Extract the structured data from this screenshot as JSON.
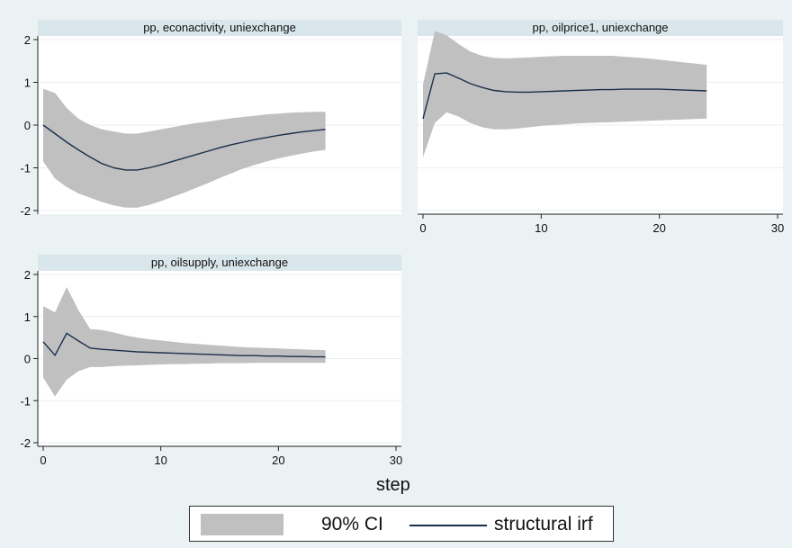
{
  "chart_data": {
    "type": "area",
    "xlabel": "step",
    "legend": {
      "items": [
        "90% CI",
        "structural irf"
      ],
      "position": "bottom"
    },
    "colors": {
      "ci_fill": "#c0c0c0",
      "irf_line": "#1a2f4a",
      "title_bar": "#d9e6eb",
      "background": "#eaf2f3",
      "plot_bg": "#ffffff",
      "grid": "#e9eef0"
    },
    "grid": true,
    "panels": [
      {
        "title": "pp, econactivity, uniexchange",
        "show_x_axis": false,
        "xlim": [
          0,
          30
        ],
        "ylim": [
          -2,
          2
        ],
        "yticks": [
          -2,
          -1,
          0,
          1,
          2
        ],
        "x": [
          0,
          1,
          2,
          3,
          4,
          5,
          6,
          7,
          8,
          9,
          10,
          11,
          12,
          13,
          14,
          15,
          16,
          17,
          18,
          19,
          20,
          21,
          22,
          23,
          24
        ],
        "irf": [
          0.0,
          -0.2,
          -0.4,
          -0.58,
          -0.75,
          -0.9,
          -1.0,
          -1.05,
          -1.05,
          -1.0,
          -0.93,
          -0.85,
          -0.77,
          -0.69,
          -0.61,
          -0.53,
          -0.46,
          -0.4,
          -0.34,
          -0.29,
          -0.24,
          -0.2,
          -0.16,
          -0.13,
          -0.1
        ],
        "upper": [
          0.85,
          0.75,
          0.4,
          0.15,
          0.0,
          -0.1,
          -0.15,
          -0.2,
          -0.2,
          -0.15,
          -0.1,
          -0.05,
          0.0,
          0.05,
          0.08,
          0.12,
          0.16,
          0.19,
          0.22,
          0.25,
          0.27,
          0.29,
          0.3,
          0.31,
          0.31
        ],
        "lower": [
          -0.85,
          -1.25,
          -1.45,
          -1.6,
          -1.7,
          -1.8,
          -1.88,
          -1.93,
          -1.93,
          -1.87,
          -1.78,
          -1.68,
          -1.58,
          -1.47,
          -1.36,
          -1.24,
          -1.13,
          -1.02,
          -0.93,
          -0.85,
          -0.78,
          -0.72,
          -0.67,
          -0.62,
          -0.58
        ]
      },
      {
        "title": "pp, oilprice1, uniexchange",
        "show_x_axis": true,
        "show_y_axis": false,
        "xlim": [
          0,
          30
        ],
        "xticks": [
          0,
          10,
          20,
          30
        ],
        "ylim": [
          -2,
          2
        ],
        "x": [
          0,
          1,
          2,
          3,
          4,
          5,
          6,
          7,
          8,
          9,
          10,
          11,
          12,
          13,
          14,
          15,
          16,
          17,
          18,
          19,
          20,
          21,
          22,
          23,
          24
        ],
        "irf": [
          0.15,
          1.2,
          1.22,
          1.1,
          0.97,
          0.88,
          0.81,
          0.78,
          0.77,
          0.77,
          0.78,
          0.79,
          0.8,
          0.81,
          0.82,
          0.83,
          0.83,
          0.84,
          0.84,
          0.84,
          0.84,
          0.83,
          0.82,
          0.81,
          0.8
        ],
        "upper": [
          0.95,
          2.2,
          2.1,
          1.9,
          1.72,
          1.62,
          1.57,
          1.56,
          1.57,
          1.58,
          1.6,
          1.61,
          1.62,
          1.62,
          1.62,
          1.62,
          1.62,
          1.6,
          1.58,
          1.56,
          1.53,
          1.5,
          1.47,
          1.44,
          1.41
        ],
        "lower": [
          -0.75,
          0.05,
          0.3,
          0.2,
          0.05,
          -0.05,
          -0.1,
          -0.1,
          -0.08,
          -0.05,
          -0.02,
          0.0,
          0.02,
          0.04,
          0.05,
          0.06,
          0.07,
          0.08,
          0.09,
          0.1,
          0.11,
          0.12,
          0.13,
          0.14,
          0.15
        ]
      },
      {
        "title": "pp, oilsupply, uniexchange",
        "show_x_axis": true,
        "xlim": [
          0,
          30
        ],
        "xticks": [
          0,
          10,
          20,
          30
        ],
        "ylim": [
          -2,
          2
        ],
        "yticks": [
          -2,
          -1,
          0,
          1,
          2
        ],
        "x": [
          0,
          1,
          2,
          3,
          4,
          5,
          6,
          7,
          8,
          9,
          10,
          11,
          12,
          13,
          14,
          15,
          16,
          17,
          18,
          19,
          20,
          21,
          22,
          23,
          24
        ],
        "irf": [
          0.4,
          0.08,
          0.6,
          0.42,
          0.25,
          0.22,
          0.2,
          0.18,
          0.16,
          0.15,
          0.14,
          0.13,
          0.12,
          0.11,
          0.1,
          0.09,
          0.08,
          0.07,
          0.07,
          0.06,
          0.06,
          0.05,
          0.05,
          0.04,
          0.04
        ],
        "upper": [
          1.25,
          1.1,
          1.7,
          1.15,
          0.7,
          0.68,
          0.62,
          0.55,
          0.5,
          0.46,
          0.43,
          0.4,
          0.37,
          0.35,
          0.33,
          0.31,
          0.29,
          0.27,
          0.26,
          0.25,
          0.24,
          0.23,
          0.22,
          0.21,
          0.2
        ],
        "lower": [
          -0.45,
          -0.9,
          -0.5,
          -0.3,
          -0.2,
          -0.2,
          -0.18,
          -0.17,
          -0.16,
          -0.15,
          -0.14,
          -0.13,
          -0.13,
          -0.12,
          -0.12,
          -0.11,
          -0.11,
          -0.11,
          -0.1,
          -0.1,
          -0.1,
          -0.1,
          -0.1,
          -0.1,
          -0.1
        ]
      }
    ]
  }
}
